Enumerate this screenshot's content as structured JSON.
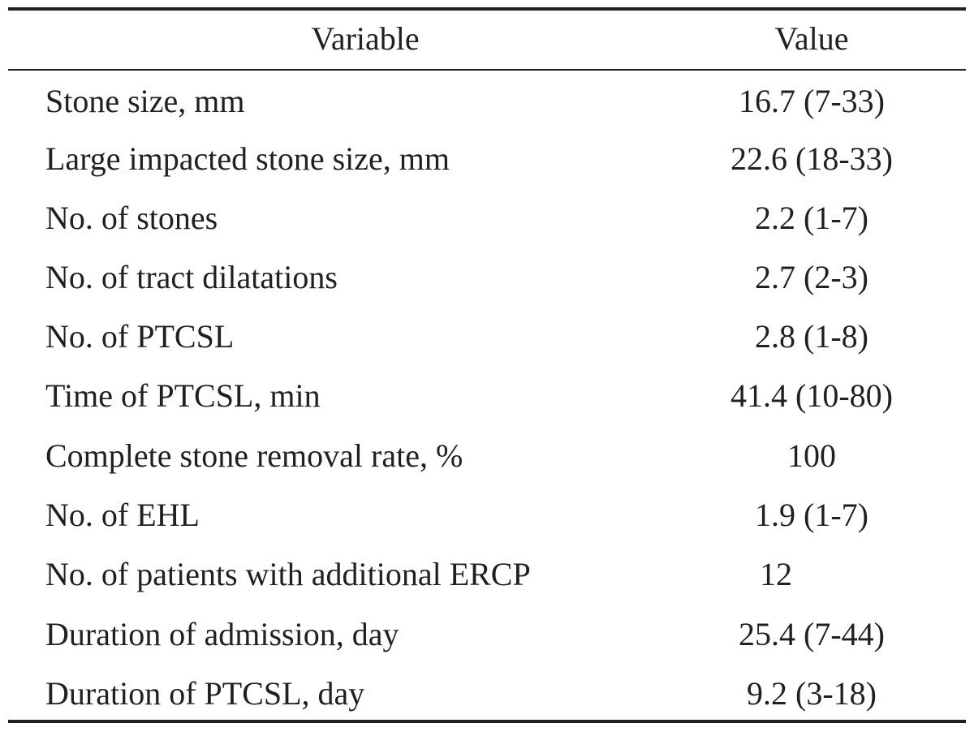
{
  "table": {
    "headers": {
      "variable": "Variable",
      "value": "Value"
    },
    "rows": [
      {
        "variable": "Stone size, mm",
        "value": "16.7 (7-33)"
      },
      {
        "variable": "Large impacted stone size, mm",
        "value": "22.6 (18-33)"
      },
      {
        "variable": "No. of stones",
        "value": "2.2 (1-7)"
      },
      {
        "variable": "No. of tract dilatations",
        "value": "2.7 (2-3)"
      },
      {
        "variable": "No. of PTCSL",
        "value": "2.8 (1-8)"
      },
      {
        "variable": "Time of PTCSL, min",
        "value": "41.4 (10-80)"
      },
      {
        "variable": "Complete stone removal rate, %",
        "value": "100"
      },
      {
        "variable": "No. of EHL",
        "value": "1.9 (1-7)"
      },
      {
        "variable": "No. of patients with additional ERCP",
        "value": "12"
      },
      {
        "variable": "Duration of admission, day",
        "value": "25.4 (7-44)"
      },
      {
        "variable": "Duration of PTCSL, day",
        "value": "9.2 (3-18)"
      }
    ]
  }
}
